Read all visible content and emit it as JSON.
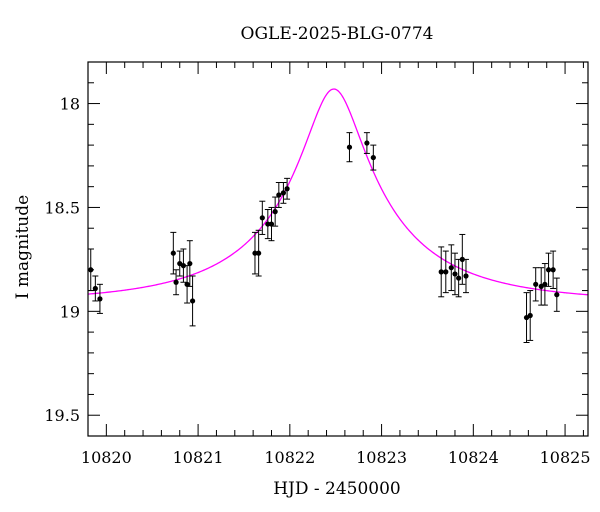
{
  "chart_data": {
    "type": "scatter",
    "title": "OGLE-2025-BLG-0774",
    "xlabel": "HJD - 2450000",
    "ylabel": "I magnitude",
    "xlim": [
      10819.8,
      10825.25
    ],
    "ylim": [
      19.6,
      17.8
    ],
    "y_inverted": true,
    "x_major_ticks": [
      10820,
      10821,
      10822,
      10823,
      10824,
      10825
    ],
    "x_tick_labels": [
      "10820",
      "10821",
      "10822",
      "10823",
      "10824",
      "10825"
    ],
    "y_major_ticks": [
      18.0,
      18.5,
      19.0,
      19.5
    ],
    "y_tick_labels": [
      "18",
      "18.5",
      "19",
      "19.5"
    ],
    "grid": false,
    "colors": {
      "points": "#000000",
      "model": "#ff00ff"
    },
    "series": [
      {
        "kind": "points-with-errorbars",
        "points": [
          {
            "x": 10819.83,
            "y": 18.8,
            "err": 0.1
          },
          {
            "x": 10819.88,
            "y": 18.89,
            "err": 0.06
          },
          {
            "x": 10819.93,
            "y": 18.94,
            "err": 0.07
          },
          {
            "x": 10820.73,
            "y": 18.72,
            "err": 0.1
          },
          {
            "x": 10820.76,
            "y": 18.86,
            "err": 0.06
          },
          {
            "x": 10820.8,
            "y": 18.77,
            "err": 0.06
          },
          {
            "x": 10820.84,
            "y": 18.78,
            "err": 0.08
          },
          {
            "x": 10820.88,
            "y": 18.87,
            "err": 0.09
          },
          {
            "x": 10820.91,
            "y": 18.77,
            "err": 0.11
          },
          {
            "x": 10820.94,
            "y": 18.95,
            "err": 0.12
          },
          {
            "x": 10821.62,
            "y": 18.72,
            "err": 0.1
          },
          {
            "x": 10821.66,
            "y": 18.72,
            "err": 0.11
          },
          {
            "x": 10821.7,
            "y": 18.55,
            "err": 0.08
          },
          {
            "x": 10821.76,
            "y": 18.58,
            "err": 0.07
          },
          {
            "x": 10821.8,
            "y": 18.58,
            "err": 0.08
          },
          {
            "x": 10821.84,
            "y": 18.52,
            "err": 0.07
          },
          {
            "x": 10821.88,
            "y": 18.44,
            "err": 0.06
          },
          {
            "x": 10821.93,
            "y": 18.43,
            "err": 0.05
          },
          {
            "x": 10821.97,
            "y": 18.41,
            "err": 0.05
          },
          {
            "x": 10822.65,
            "y": 18.21,
            "err": 0.07
          },
          {
            "x": 10822.84,
            "y": 18.19,
            "err": 0.05
          },
          {
            "x": 10822.91,
            "y": 18.26,
            "err": 0.06
          },
          {
            "x": 10823.65,
            "y": 18.81,
            "err": 0.12
          },
          {
            "x": 10823.7,
            "y": 18.81,
            "err": 0.1
          },
          {
            "x": 10823.76,
            "y": 18.79,
            "err": 0.11
          },
          {
            "x": 10823.8,
            "y": 18.82,
            "err": 0.1
          },
          {
            "x": 10823.84,
            "y": 18.84,
            "err": 0.09
          },
          {
            "x": 10823.88,
            "y": 18.75,
            "err": 0.12
          },
          {
            "x": 10823.92,
            "y": 18.83,
            "err": 0.08
          },
          {
            "x": 10824.58,
            "y": 19.03,
            "err": 0.12
          },
          {
            "x": 10824.62,
            "y": 19.02,
            "err": 0.12
          },
          {
            "x": 10824.68,
            "y": 18.87,
            "err": 0.08
          },
          {
            "x": 10824.74,
            "y": 18.88,
            "err": 0.09
          },
          {
            "x": 10824.78,
            "y": 18.87,
            "err": 0.1
          },
          {
            "x": 10824.82,
            "y": 18.8,
            "err": 0.08
          },
          {
            "x": 10824.87,
            "y": 18.8,
            "err": 0.09
          },
          {
            "x": 10824.91,
            "y": 18.92,
            "err": 0.08
          }
        ]
      },
      {
        "kind": "model-curve",
        "peak_x": 10822.48,
        "peak_mag": 17.93,
        "baseline_mag": 18.955,
        "tE": 1.6,
        "u0": 0.19
      }
    ]
  }
}
